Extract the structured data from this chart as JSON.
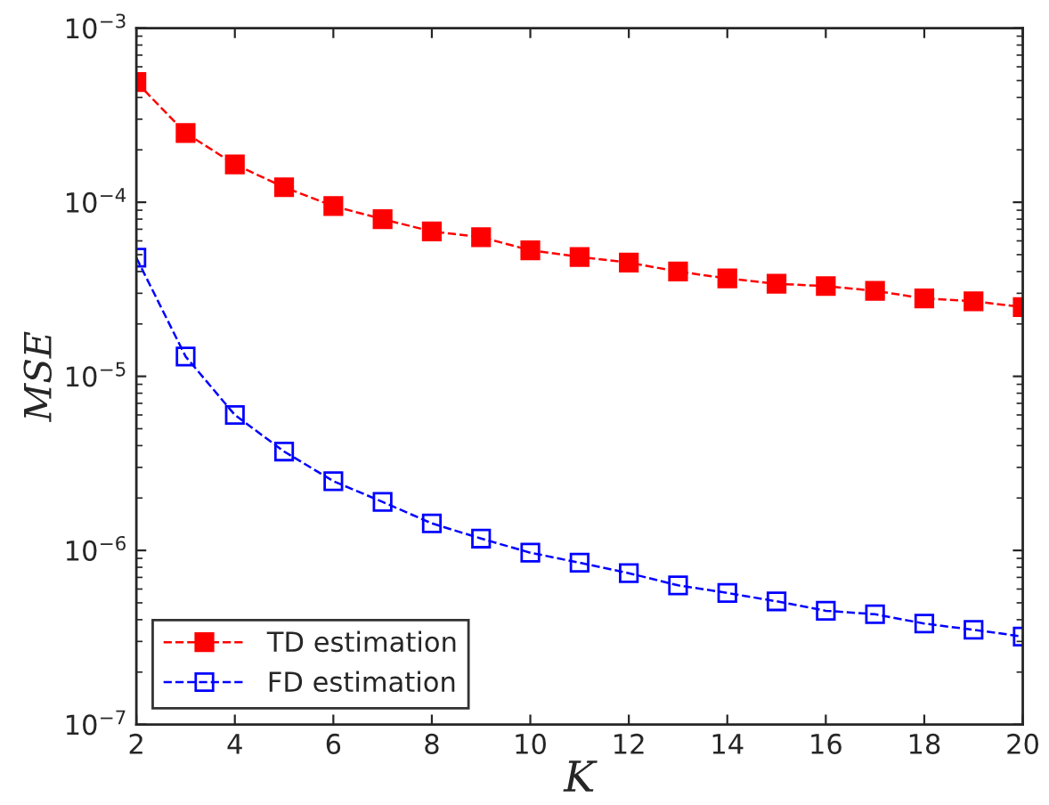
{
  "chart_data": {
    "type": "line",
    "xlabel": "K",
    "ylabel": "MSE",
    "x": [
      2,
      3,
      4,
      5,
      6,
      7,
      8,
      9,
      10,
      11,
      12,
      13,
      14,
      15,
      16,
      17,
      18,
      19,
      20
    ],
    "series": [
      {
        "name": "TD estimation",
        "color": "#ff0000",
        "values": [
          0.00049,
          0.00025,
          0.000165,
          0.000122,
          9.5e-05,
          8e-05,
          6.8e-05,
          6.3e-05,
          5.3e-05,
          4.85e-05,
          4.5e-05,
          4e-05,
          3.65e-05,
          3.4e-05,
          3.3e-05,
          3.1e-05,
          2.8e-05,
          2.7e-05,
          2.5e-05
        ]
      },
      {
        "name": "FD estimation",
        "color": "#0000ff",
        "values": [
          4.8e-05,
          1.3e-05,
          6e-06,
          3.7e-06,
          2.5e-06,
          1.9e-06,
          1.43e-06,
          1.17e-06,
          9.7e-07,
          8.5e-07,
          7.4e-07,
          6.3e-07,
          5.7e-07,
          5.1e-07,
          4.5e-07,
          4.3e-07,
          3.8e-07,
          3.5e-07,
          3.2e-07
        ]
      }
    ],
    "log": "y",
    "xlim": [
      2,
      20
    ],
    "xticks": [
      2,
      4,
      6,
      8,
      10,
      12,
      14,
      16,
      18,
      20
    ],
    "ylim": [
      1e-07,
      0.001
    ],
    "yticks": [
      {
        "value": 1e-07,
        "label": "10$^{−7}$"
      },
      {
        "value": 1e-06,
        "label": "10$^{−6}$"
      },
      {
        "value": 1e-05,
        "label": "10$^{−5}$"
      },
      {
        "value": 0.0001,
        "label": "10$^{−4}$"
      },
      {
        "value": 0.001,
        "label": "10$^{−3}$"
      }
    ],
    "grid": false,
    "legend": "bottom left",
    "marker": "square",
    "line_style": "dashed"
  }
}
